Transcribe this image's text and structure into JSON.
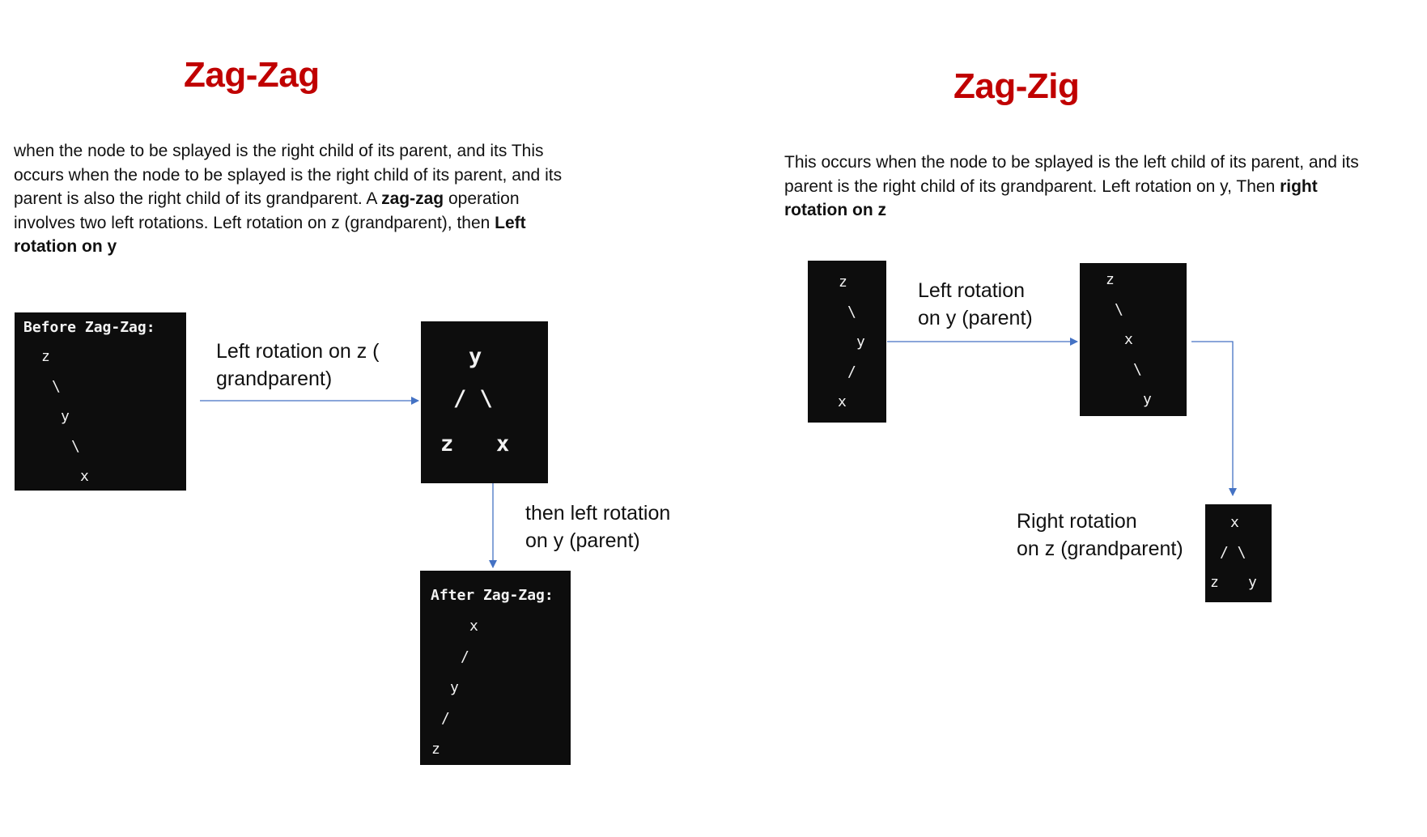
{
  "colors": {
    "title": "#c00000",
    "arrow": "#4472c4",
    "box_bg": "#0d0d0d",
    "box_text": "#f2f2f2"
  },
  "left": {
    "title": "Zag-Zag",
    "desc": {
      "p1": "when the node to be splayed is the right child of its parent, and its This occurs when the node to be splayed is the right child of its parent, and  its parent is also the right child of its grandparent. A ",
      "b1": "zag-zag",
      "p2": " operation involves two left rotations. Left rotation on z (grandparent), then ",
      "b2": "Left rotation on y"
    },
    "before_box": {
      "heading": "Before Zag-Zag:",
      "lines": [
        "z",
        "\\",
        "y",
        "\\",
        "x"
      ]
    },
    "arrow1_label": [
      "Left rotation on z (",
      "grandparent)"
    ],
    "middle_box": {
      "lines": [
        "y",
        "/ \\",
        "z",
        "x"
      ]
    },
    "arrow2_label": [
      "then left rotation",
      "on y (parent)"
    ],
    "after_box": {
      "heading": "After Zag-Zag:",
      "lines": [
        "x",
        "/",
        "y",
        "/",
        "z"
      ]
    }
  },
  "right": {
    "title": "Zag-Zig",
    "desc": {
      "p1": "This occurs when the node to be splayed is the left child of its parent, and its parent is the right child of its grandparent. Left rotation on y, Then ",
      "b1": "right rotation on z"
    },
    "box1": {
      "lines": [
        "z",
        "\\",
        "y",
        "/",
        "x"
      ]
    },
    "arrow1_label": [
      "Left rotation",
      "on y (parent)"
    ],
    "box2": {
      "lines": [
        "z",
        "\\",
        "x",
        "\\",
        "y"
      ]
    },
    "arrow2_label": [
      "Right rotation",
      "on z (grandparent)"
    ],
    "box3": {
      "lines": [
        "x",
        "/ \\",
        "z",
        "y"
      ]
    }
  }
}
